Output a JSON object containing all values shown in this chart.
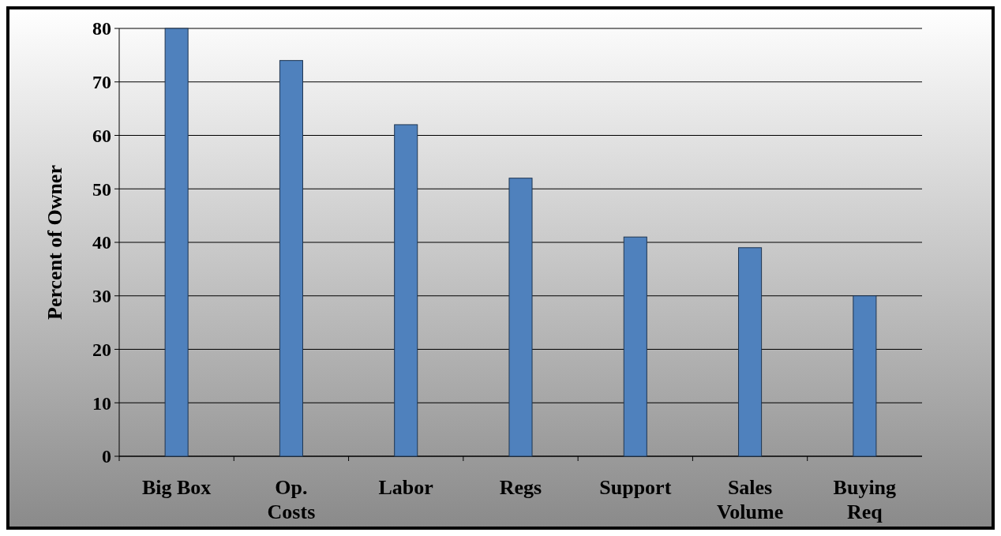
{
  "chart_data": {
    "type": "bar",
    "ylabel": "Percent of Owner",
    "categories": [
      "Big Box",
      "Op.\nCosts",
      "Labor",
      "Regs",
      "Support",
      "Sales\nVolume",
      "Buying\nReq"
    ],
    "values": [
      80,
      74,
      62,
      52,
      41,
      39,
      30
    ],
    "color": "#4f81bd",
    "ylim": [
      0,
      80
    ],
    "yticks": [
      0,
      10,
      20,
      30,
      40,
      50,
      60,
      70,
      80
    ],
    "grid": "y"
  }
}
